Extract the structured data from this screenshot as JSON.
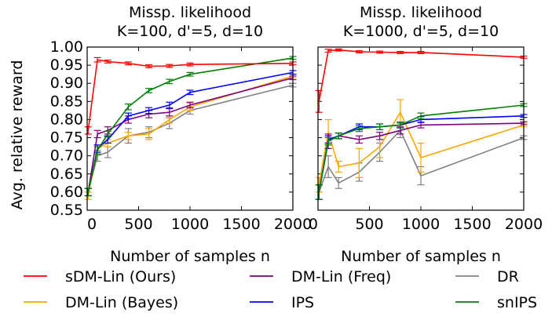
{
  "figure": {
    "ylabel": "Avg. relative reward"
  },
  "chart_data": [
    {
      "type": "line",
      "title_lines": [
        "Missp. likelihood",
        "K=100, d'=5, d=10"
      ],
      "xlabel": "Number of samples n",
      "xlim": [
        0,
        2000
      ],
      "ylim": [
        0.55,
        1.0
      ],
      "xticks": [
        "0",
        "500",
        "1000",
        "1500",
        "2000"
      ],
      "yticks": [
        "0.55",
        "0.60",
        "0.65",
        "0.70",
        "0.75",
        "0.80",
        "0.85",
        "0.90",
        "0.95",
        "1.00"
      ],
      "x": [
        10,
        100,
        200,
        400,
        600,
        800,
        1000,
        2000
      ],
      "series": [
        {
          "name": "DR",
          "color": "#808080",
          "values": [
            0.6,
            0.7,
            0.71,
            0.755,
            0.765,
            0.79,
            0.825,
            0.895
          ],
          "err": [
            0.01,
            0.015,
            0.015,
            0.02,
            0.015,
            0.015,
            0.01,
            0.005
          ]
        },
        {
          "name": "DM-Lin (Bayes)",
          "color": "#ffa500",
          "values": [
            0.59,
            0.72,
            0.735,
            0.755,
            0.76,
            0.8,
            0.835,
            0.92
          ],
          "err": [
            0.01,
            0.01,
            0.01,
            0.01,
            0.015,
            0.01,
            0.01,
            0.005
          ]
        },
        {
          "name": "DM-Lin (Freq)",
          "color": "#800080",
          "values": [
            0.6,
            0.76,
            0.77,
            0.8,
            0.815,
            0.82,
            0.84,
            0.915
          ],
          "err": [
            0.01,
            0.01,
            0.01,
            0.01,
            0.01,
            0.01,
            0.008,
            0.005
          ]
        },
        {
          "name": "IPS",
          "color": "#0000ff",
          "values": [
            0.6,
            0.72,
            0.745,
            0.81,
            0.825,
            0.84,
            0.875,
            0.93
          ],
          "err": [
            0.01,
            0.01,
            0.01,
            0.008,
            0.008,
            0.008,
            0.006,
            0.005
          ]
        },
        {
          "name": "snIPS",
          "color": "#008000",
          "values": [
            0.6,
            0.715,
            0.76,
            0.835,
            0.88,
            0.905,
            0.925,
            0.97
          ],
          "err": [
            0.01,
            0.01,
            0.008,
            0.008,
            0.006,
            0.006,
            0.005,
            0.004
          ]
        },
        {
          "name": "sDM-Lin (Ours)",
          "color": "#ff0000",
          "values": [
            0.77,
            0.965,
            0.96,
            0.955,
            0.947,
            0.948,
            0.952,
            0.955
          ],
          "err": [
            0.01,
            0.006,
            0.004,
            0.004,
            0.004,
            0.004,
            0.004,
            0.004
          ]
        }
      ]
    },
    {
      "type": "line",
      "title_lines": [
        "Missp. likelihood",
        "K=1000, d'=5, d=10"
      ],
      "xlabel": "Number of samples n",
      "xlim": [
        0,
        2000
      ],
      "ylim": [
        0.55,
        1.0
      ],
      "xticks": [
        "0",
        "500",
        "1000",
        "1500",
        "2000"
      ],
      "yticks": [],
      "x": [
        10,
        100,
        200,
        400,
        600,
        800,
        1000,
        2000
      ],
      "series": [
        {
          "name": "DR",
          "color": "#808080",
          "values": [
            0.6,
            0.67,
            0.625,
            0.655,
            0.71,
            0.77,
            0.645,
            0.75
          ],
          "err": [
            0.02,
            0.03,
            0.015,
            0.025,
            0.025,
            0.02,
            0.025,
            0.005
          ]
        },
        {
          "name": "DM-Lin (Bayes)",
          "color": "#ffa500",
          "values": [
            0.62,
            0.765,
            0.67,
            0.68,
            0.725,
            0.82,
            0.695,
            0.785
          ],
          "err": [
            0.02,
            0.035,
            0.015,
            0.04,
            0.03,
            0.035,
            0.04,
            0.005
          ]
        },
        {
          "name": "DM-Lin (Freq)",
          "color": "#800080",
          "values": [
            0.6,
            0.74,
            0.755,
            0.745,
            0.755,
            0.77,
            0.785,
            0.79
          ],
          "err": [
            0.02,
            0.02,
            0.008,
            0.01,
            0.01,
            0.01,
            0.008,
            0.004
          ]
        },
        {
          "name": "IPS",
          "color": "#0000ff",
          "values": [
            0.6,
            0.745,
            0.755,
            0.78,
            0.78,
            0.785,
            0.8,
            0.81
          ],
          "err": [
            0.02,
            0.01,
            0.008,
            0.008,
            0.008,
            0.008,
            0.008,
            0.004
          ]
        },
        {
          "name": "snIPS",
          "color": "#008000",
          "values": [
            0.6,
            0.74,
            0.755,
            0.775,
            0.78,
            0.785,
            0.81,
            0.84
          ],
          "err": [
            0.02,
            0.01,
            0.008,
            0.008,
            0.008,
            0.008,
            0.008,
            0.004
          ]
        },
        {
          "name": "sDM-Lin (Ours)",
          "color": "#ff0000",
          "values": [
            0.85,
            0.99,
            0.992,
            0.987,
            0.986,
            0.985,
            0.985,
            0.972
          ],
          "err": [
            0.03,
            0.004,
            0.003,
            0.003,
            0.003,
            0.003,
            0.003,
            0.003
          ]
        }
      ]
    }
  ],
  "legend": {
    "placement": "bottom",
    "entries": [
      {
        "name": "sDM-Lin (Ours)",
        "color": "#ff0000"
      },
      {
        "name": "DM-Lin (Freq)",
        "color": "#800080"
      },
      {
        "name": "DR",
        "color": "#808080"
      },
      {
        "name": "DM-Lin (Bayes)",
        "color": "#ffa500"
      },
      {
        "name": "IPS",
        "color": "#0000ff"
      },
      {
        "name": "snIPS",
        "color": "#008000"
      }
    ]
  }
}
